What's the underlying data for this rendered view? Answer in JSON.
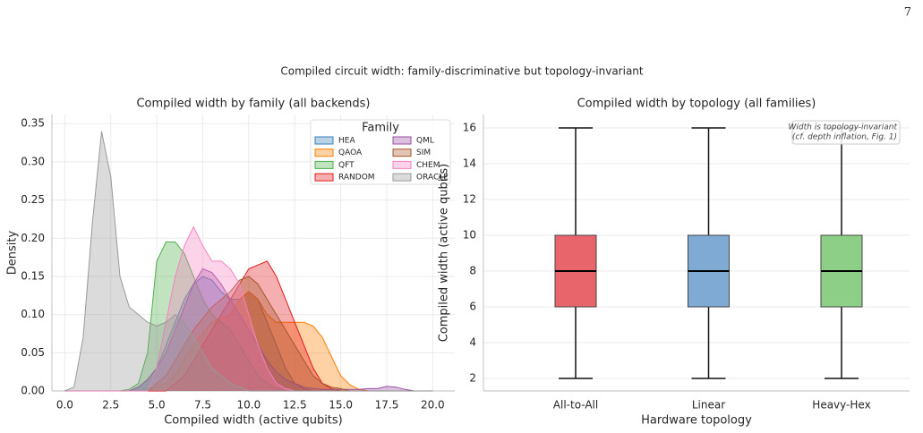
{
  "page_number": "7",
  "figure_title": "Compiled circuit width: family-discriminative but topology-invariant",
  "chart_data": [
    {
      "type": "kde",
      "title": "Compiled width by family (all backends)",
      "xlabel": "Compiled width (active qubits)",
      "ylabel": "Density",
      "xlim": [
        -0.7,
        21.2
      ],
      "ylim": [
        0,
        0.362
      ],
      "xticks": [
        {
          "value": 0,
          "label": "0.0"
        },
        2.5,
        {
          "value": 5,
          "label": "5.0"
        },
        7.5,
        {
          "value": 10,
          "label": "10.0"
        },
        12.5,
        {
          "value": 15,
          "label": "15.0"
        },
        17.5,
        {
          "value": 20,
          "label": "20.0"
        }
      ],
      "yticks": [
        {
          "value": 0,
          "label": "0.00"
        },
        0.05,
        {
          "value": 0.1,
          "label": "0.10"
        },
        0.15,
        {
          "value": 0.2,
          "label": "0.20"
        },
        0.25,
        {
          "value": 0.3,
          "label": "0.30"
        },
        0.35
      ],
      "grid": true,
      "legend_title": "Family",
      "legend_loc": "upper right",
      "x": [
        0,
        0.5,
        1,
        1.5,
        2,
        2.5,
        3,
        3.5,
        4,
        4.5,
        5,
        5.5,
        6,
        6.5,
        7,
        7.5,
        8,
        8.5,
        9,
        9.5,
        10,
        10.5,
        11,
        11.5,
        12,
        12.5,
        13,
        13.5,
        14,
        14.5,
        15,
        15.5,
        16,
        16.5,
        17,
        17.5,
        18,
        18.5,
        19,
        19.5,
        20
      ],
      "series": [
        {
          "name": "HEA",
          "color": "#377eb8",
          "values": [
            0,
            0,
            0,
            0,
            0,
            0,
            0,
            0,
            0.005,
            0.015,
            0.03,
            0.06,
            0.09,
            0.12,
            0.14,
            0.15,
            0.145,
            0.13,
            0.12,
            0.12,
            0.13,
            0.12,
            0.09,
            0.06,
            0.03,
            0.01,
            0.003,
            0,
            0,
            0,
            0,
            0,
            0,
            0,
            0,
            0,
            0,
            0,
            0,
            0,
            0
          ]
        },
        {
          "name": "QAOA",
          "color": "#ff7f00",
          "values": [
            0,
            0,
            0,
            0,
            0,
            0,
            0,
            0,
            0,
            0,
            0.005,
            0.01,
            0.02,
            0.04,
            0.06,
            0.075,
            0.09,
            0.095,
            0.1,
            0.12,
            0.13,
            0.12,
            0.1,
            0.09,
            0.09,
            0.09,
            0.09,
            0.085,
            0.07,
            0.045,
            0.02,
            0.008,
            0.002,
            0,
            0,
            0,
            0,
            0,
            0,
            0,
            0
          ]
        },
        {
          "name": "QFT",
          "color": "#4daf4a",
          "values": [
            0,
            0,
            0,
            0,
            0,
            0,
            0,
            0.002,
            0.01,
            0.05,
            0.17,
            0.195,
            0.195,
            0.18,
            0.15,
            0.12,
            0.1,
            0.09,
            0.08,
            0.06,
            0.04,
            0.02,
            0.01,
            0.003,
            0,
            0,
            0,
            0,
            0,
            0,
            0,
            0,
            0,
            0,
            0,
            0,
            0,
            0,
            0,
            0,
            0
          ]
        },
        {
          "name": "RANDOM",
          "color": "#e41a1c",
          "values": [
            0,
            0,
            0,
            0,
            0,
            0,
            0,
            0,
            0,
            0,
            0,
            0,
            0.01,
            0.02,
            0.04,
            0.06,
            0.08,
            0.1,
            0.12,
            0.14,
            0.16,
            0.165,
            0.17,
            0.15,
            0.12,
            0.09,
            0.06,
            0.03,
            0.01,
            0.003,
            0,
            0,
            0,
            0,
            0,
            0,
            0,
            0,
            0,
            0,
            0
          ]
        },
        {
          "name": "QML",
          "color": "#984ea3",
          "values": [
            0,
            0,
            0,
            0,
            0,
            0,
            0,
            0,
            0.005,
            0.015,
            0.03,
            0.05,
            0.08,
            0.11,
            0.14,
            0.16,
            0.155,
            0.14,
            0.12,
            0.1,
            0.08,
            0.06,
            0.04,
            0.025,
            0.015,
            0.01,
            0.005,
            0.003,
            0.002,
            0.002,
            0.002,
            0.002,
            0.002,
            0.003,
            0.003,
            0.006,
            0.005,
            0.002,
            0,
            0,
            0
          ]
        },
        {
          "name": "SIM",
          "color": "#a65628",
          "values": [
            0,
            0,
            0,
            0,
            0,
            0,
            0,
            0,
            0,
            0,
            0.01,
            0.02,
            0.04,
            0.06,
            0.08,
            0.095,
            0.11,
            0.12,
            0.13,
            0.145,
            0.15,
            0.14,
            0.12,
            0.1,
            0.08,
            0.06,
            0.04,
            0.02,
            0.01,
            0.005,
            0.003,
            0,
            0,
            0,
            0,
            0,
            0,
            0,
            0,
            0,
            0
          ]
        },
        {
          "name": "CHEM",
          "color": "#f781bf",
          "values": [
            0,
            0,
            0,
            0,
            0,
            0,
            0,
            0,
            0,
            0,
            0.03,
            0.09,
            0.15,
            0.19,
            0.215,
            0.19,
            0.17,
            0.17,
            0.16,
            0.14,
            0.1,
            0.06,
            0.03,
            0.01,
            0.003,
            0,
            0,
            0,
            0,
            0,
            0,
            0,
            0,
            0,
            0,
            0,
            0,
            0,
            0,
            0,
            0
          ]
        },
        {
          "name": "ORACLE",
          "color": "#999999",
          "values": [
            0,
            0.005,
            0.07,
            0.22,
            0.34,
            0.28,
            0.15,
            0.11,
            0.1,
            0.09,
            0.085,
            0.09,
            0.1,
            0.09,
            0.07,
            0.05,
            0.03,
            0.02,
            0.01,
            0.005,
            0,
            0,
            0,
            0,
            0,
            0,
            0,
            0,
            0,
            0,
            0,
            0,
            0,
            0,
            0,
            0,
            0,
            0,
            0,
            0,
            0
          ]
        }
      ]
    },
    {
      "type": "box",
      "title": "Compiled width by topology (all families)",
      "xlabel": "Hardware topology",
      "ylabel": "Compiled width (active qubits)",
      "ylim": [
        1.3,
        16.75
      ],
      "yticks": [
        2,
        4,
        6,
        8,
        10,
        12,
        14,
        16
      ],
      "grid": true,
      "categories": [
        "All-to-All",
        "Linear",
        "Heavy-Hex"
      ],
      "boxes": [
        {
          "whislo": 2,
          "q1": 6,
          "med": 8,
          "q3": 10,
          "whishi": 16,
          "color": "#e8666b"
        },
        {
          "whislo": 2,
          "q1": 6,
          "med": 8,
          "q3": 10,
          "whishi": 16,
          "color": "#7eaad4"
        },
        {
          "whislo": 2,
          "q1": 6,
          "med": 8,
          "q3": 10,
          "whishi": 16,
          "color": "#8dcf86"
        }
      ],
      "annotation": [
        "Width is topology-invariant",
        "(cf. depth inflation, Fig. 1)"
      ]
    }
  ]
}
